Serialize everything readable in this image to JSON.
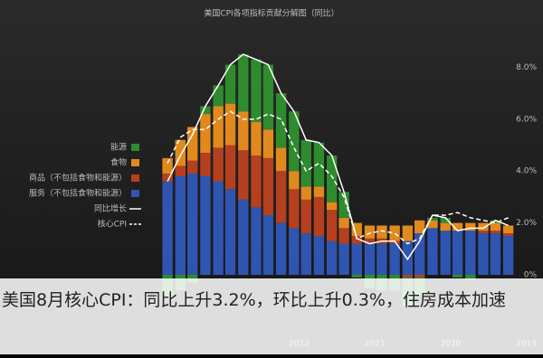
{
  "chart_data": {
    "type": "bar",
    "title": "美国CPI各项指标贡献分解图（同比）",
    "x": [
      2019,
      2019.17,
      2019.33,
      2019.5,
      2019.67,
      2019.83,
      2020,
      2020.17,
      2020.33,
      2020.5,
      2020.67,
      2020.83,
      2021,
      2021.17,
      2021.33,
      2021.5,
      2021.67,
      2021.83,
      2022,
      2022.17,
      2022.33,
      2022.5,
      2022.67,
      2022.83,
      2023,
      2023.17,
      2023.33,
      2023.5
    ],
    "xlim": [
      2023.8,
      2018.9
    ],
    "xticks": [
      2019,
      2020,
      2021,
      2022
    ],
    "ylim": [
      -2.3,
      9.2
    ],
    "yticks": [
      {
        "value": 0,
        "label": "0%"
      },
      {
        "value": 2,
        "label": "2.0%"
      },
      {
        "value": 4,
        "label": "4.0%"
      },
      {
        "value": 6,
        "label": "6.0%"
      },
      {
        "value": 8,
        "label": "8.0%"
      }
    ],
    "grid": false,
    "series": [
      {
        "name": "服务（不包括食物和能源）",
        "color": "#2f55b0",
        "type": "bar",
        "values": [
          1.5,
          1.6,
          1.6,
          1.7,
          1.7,
          1.7,
          1.8,
          1.6,
          1.3,
          1.2,
          1.2,
          1.2,
          1.2,
          1.2,
          1.3,
          1.5,
          1.6,
          1.8,
          2.0,
          2.3,
          2.6,
          2.9,
          3.3,
          3.6,
          3.8,
          3.9,
          3.8,
          3.6
        ]
      },
      {
        "name": "商品（不包括食物和能源）",
        "color": "#b5401f",
        "type": "bar",
        "values": [
          0.1,
          0.1,
          0.1,
          0.0,
          0.0,
          0.0,
          0.0,
          -0.1,
          -0.1,
          0.1,
          0.2,
          0.2,
          0.3,
          0.6,
          1.2,
          1.5,
          1.3,
          1.5,
          2.0,
          2.2,
          2.0,
          1.9,
          1.7,
          1.3,
          0.9,
          0.5,
          0.4,
          0.3
        ]
      },
      {
        "name": "食物",
        "color": "#e08a1e",
        "type": "bar",
        "values": [
          0.3,
          0.3,
          0.3,
          0.3,
          0.3,
          0.3,
          0.3,
          0.5,
          0.6,
          0.6,
          0.5,
          0.5,
          0.5,
          0.4,
          0.3,
          0.4,
          0.5,
          0.7,
          0.9,
          1.1,
          1.3,
          1.5,
          1.6,
          1.6,
          1.5,
          1.3,
          1.0,
          0.6
        ]
      },
      {
        "name": "能源",
        "color": "#2e8b2e",
        "type": "bar",
        "values": [
          0.0,
          0.1,
          0.0,
          -0.2,
          -0.1,
          0.2,
          0.1,
          -0.7,
          -1.1,
          -0.6,
          -0.6,
          -0.5,
          -0.1,
          1.0,
          1.8,
          1.7,
          1.8,
          2.3,
          2.1,
          2.5,
          2.4,
          2.2,
          1.5,
          0.8,
          0.3,
          -0.3,
          -0.6,
          -0.9
        ]
      },
      {
        "name": "同比增长",
        "color": "#ffffff",
        "type": "line",
        "values": [
          1.9,
          2.1,
          1.8,
          1.8,
          1.7,
          2.2,
          2.3,
          1.3,
          0.6,
          1.3,
          1.3,
          1.2,
          1.4,
          3.2,
          4.6,
          5.1,
          5.2,
          6.3,
          7.0,
          8.1,
          8.3,
          8.5,
          8.1,
          7.3,
          6.5,
          5.4,
          4.6,
          3.6
        ]
      },
      {
        "name": "核心CPI",
        "color": "#ffffff",
        "type": "line",
        "dashed": true,
        "values": [
          2.2,
          2.0,
          2.1,
          2.2,
          2.4,
          2.3,
          2.3,
          1.4,
          1.2,
          1.6,
          1.7,
          1.6,
          1.4,
          3.0,
          3.8,
          4.3,
          4.0,
          4.9,
          6.0,
          6.2,
          6.0,
          6.0,
          6.3,
          6.0,
          5.6,
          5.6,
          5.3,
          4.3
        ]
      }
    ]
  },
  "caption": "美国8月核心CPI：同比上升3.2%，环比上升0.3%，住房成本加速"
}
